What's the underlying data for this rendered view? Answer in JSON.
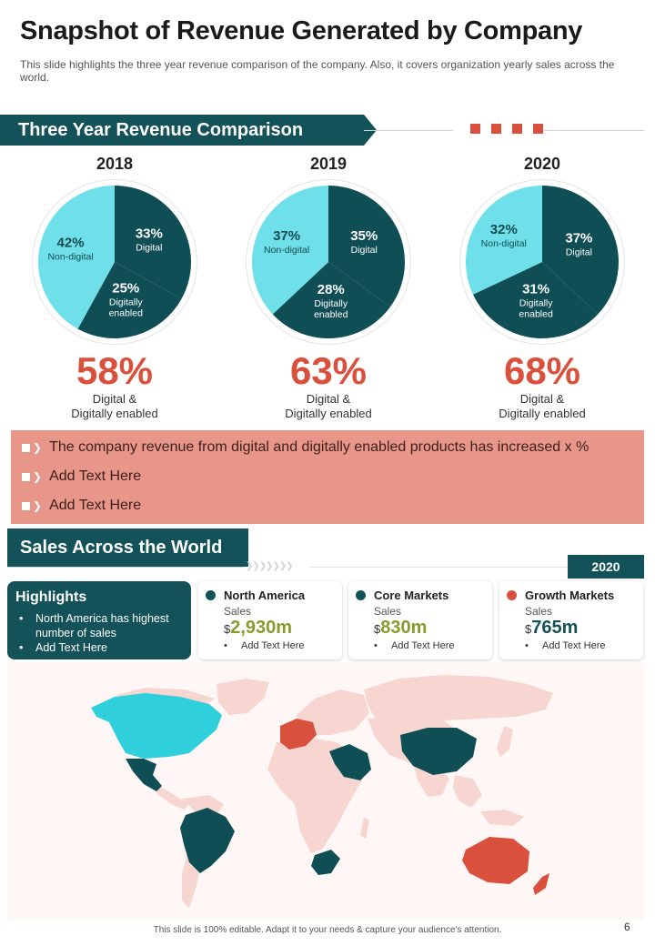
{
  "title": "Snapshot of Revenue Generated by Company",
  "subtitle": "This slide highlights the three year revenue  comparison of the company. Also, it covers organization yearly sales across the world.",
  "colors": {
    "teal_dark": "#135259",
    "cyan": "#6fe0ea",
    "coral": "#d9503c",
    "salmon": "#e9968a",
    "olive": "#8a9a2c"
  },
  "section1": {
    "title": "Three Year Revenue Comparison"
  },
  "years": [
    {
      "year": "2018",
      "slices": [
        {
          "pct": 33,
          "label": "33%",
          "name": "Digital",
          "color": "#0f4e55"
        },
        {
          "pct": 25,
          "label": "25%",
          "name": "Digitally enabled",
          "color": "#0f4e55"
        },
        {
          "pct": 42,
          "label": "42%",
          "name": "Non-digital",
          "color": "#6fe0ea"
        }
      ],
      "total": "58%",
      "total_caption_1": "Digital &",
      "total_caption_2": "Digitally enabled"
    },
    {
      "year": "2019",
      "slices": [
        {
          "pct": 35,
          "label": "35%",
          "name": "Digital",
          "color": "#0f4e55"
        },
        {
          "pct": 28,
          "label": "28%",
          "name": "Digitally enabled",
          "color": "#0f4e55"
        },
        {
          "pct": 37,
          "label": "37%",
          "name": "Non-digital",
          "color": "#6fe0ea"
        }
      ],
      "total": "63%",
      "total_caption_1": "Digital &",
      "total_caption_2": "Digitally enabled"
    },
    {
      "year": "2020",
      "slices": [
        {
          "pct": 37,
          "label": "37%",
          "name": "Digital",
          "color": "#0f4e55"
        },
        {
          "pct": 31,
          "label": "31%",
          "name": "Digitally enabled",
          "color": "#0f4e55"
        },
        {
          "pct": 32,
          "label": "32%",
          "name": "Non-digital",
          "color": "#6fe0ea"
        }
      ],
      "total": "68%",
      "total_caption_1": "Digital &",
      "total_caption_2": "Digitally enabled"
    }
  ],
  "bullets": [
    "The company revenue from digital and digitally enabled products has increased x %",
    "Add Text Here",
    "Add Text Here"
  ],
  "section2": {
    "title": "Sales Across the World",
    "year_badge": "2020"
  },
  "highlights": {
    "title": "Highlights",
    "items": [
      "North America has highest number of sales",
      "Add Text Here"
    ]
  },
  "cards": [
    {
      "title": "North America",
      "sales_label": "Sales",
      "currency": "$",
      "value": "2,930m",
      "value_color": "#8a9a2c",
      "dot_color": "#135259",
      "bullet": "Add Text Here"
    },
    {
      "title": "Core Markets",
      "sales_label": "Sales",
      "currency": "$",
      "value": "830m",
      "value_color": "#8a9a2c",
      "dot_color": "#135259",
      "bullet": "Add Text Here"
    },
    {
      "title": "Growth Markets",
      "sales_label": "Sales",
      "currency": "$",
      "value": "765m",
      "value_color": "#135259",
      "dot_color": "#d9503c",
      "bullet": "Add Text Here"
    }
  ],
  "map": {
    "icon": "world-map-icon"
  },
  "footer": "This slide is 100% editable. Adapt it to your needs & capture your audience's attention.",
  "page_number": "6",
  "chart_data": [
    {
      "type": "pie",
      "title": "2018",
      "categories": [
        "Digital",
        "Digitally enabled",
        "Non-digital"
      ],
      "values": [
        33,
        25,
        42
      ]
    },
    {
      "type": "pie",
      "title": "2019",
      "categories": [
        "Digital",
        "Digitally enabled",
        "Non-digital"
      ],
      "values": [
        35,
        28,
        37
      ]
    },
    {
      "type": "pie",
      "title": "2020",
      "categories": [
        "Digital",
        "Digitally enabled",
        "Non-digital"
      ],
      "values": [
        37,
        31,
        32
      ]
    }
  ]
}
